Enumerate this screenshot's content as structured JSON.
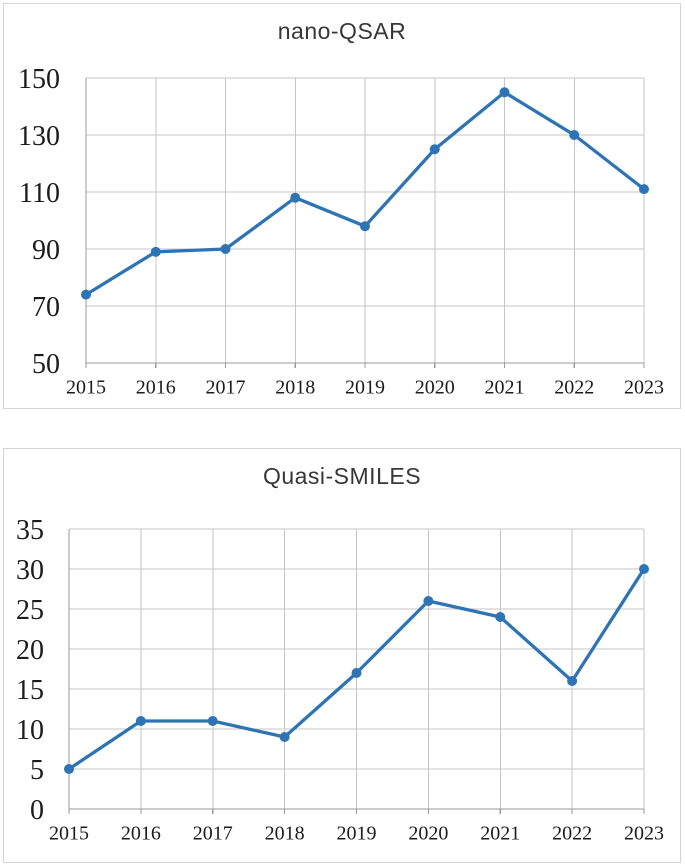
{
  "style": {
    "background": "#ffffff",
    "panel_border_color": "#d5d5d5",
    "line_color": "#2E74B5",
    "marker_color": "#2E74B5",
    "grid_color": "#c6c6c6",
    "axis_color": "#9a9a9a",
    "tick_label_color": "#1c1c1c",
    "title_color": "#373737"
  },
  "chart_data": [
    {
      "type": "line",
      "title": "nano-QSAR",
      "categories": [
        "2015",
        "2016",
        "2017",
        "2018",
        "2019",
        "2020",
        "2021",
        "2022",
        "2023"
      ],
      "values": [
        74,
        89,
        90,
        108,
        98,
        125,
        145,
        130,
        111
      ],
      "ylim": [
        50,
        150
      ],
      "yticks": [
        50,
        70,
        90,
        110,
        130,
        150
      ],
      "xlabel": "",
      "ylabel": "",
      "grid": true,
      "legend": "none",
      "marker": "circle"
    },
    {
      "type": "line",
      "title": "Quasi-SMILES",
      "categories": [
        "2015",
        "2016",
        "2017",
        "2018",
        "2019",
        "2020",
        "2021",
        "2022",
        "2023"
      ],
      "values": [
        5,
        11,
        11,
        9,
        17,
        26,
        24,
        16,
        30
      ],
      "ylim": [
        0,
        35
      ],
      "yticks": [
        0,
        5,
        10,
        15,
        20,
        25,
        30,
        35
      ],
      "xlabel": "",
      "ylabel": "",
      "grid": true,
      "legend": "none",
      "marker": "circle"
    }
  ]
}
